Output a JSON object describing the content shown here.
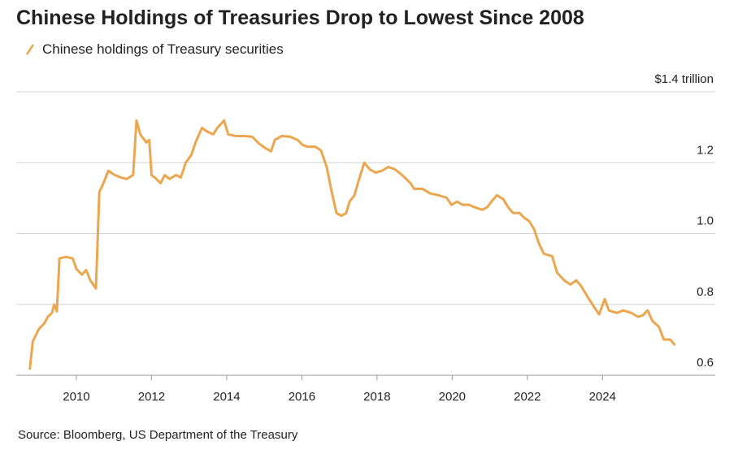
{
  "chart_data": {
    "type": "line",
    "title": "Chinese Holdings of Treasuries Drop to Lowest Since 2008",
    "source": "Source: Bloomberg, US Department of the Treasury",
    "x": [
      2008.76,
      2008.84,
      2009.0,
      2009.15,
      2009.24,
      2009.35,
      2009.41,
      2009.48,
      2009.55,
      2009.72,
      2009.9,
      2010.0,
      2010.15,
      2010.26,
      2010.37,
      2010.52,
      2010.61,
      2010.72,
      2010.85,
      2011.02,
      2011.19,
      2011.34,
      2011.51,
      2011.6,
      2011.7,
      2011.86,
      2011.94,
      2012.0,
      2012.13,
      2012.24,
      2012.35,
      2012.48,
      2012.65,
      2012.78,
      2012.91,
      2013.06,
      2013.17,
      2013.34,
      2013.49,
      2013.64,
      2013.75,
      2013.93,
      2014.04,
      2014.25,
      2014.47,
      2014.68,
      2014.86,
      2015.03,
      2015.18,
      2015.28,
      2015.46,
      2015.69,
      2015.89,
      2016.02,
      2016.15,
      2016.36,
      2016.51,
      2016.66,
      2016.79,
      2016.92,
      2017.05,
      2017.18,
      2017.27,
      2017.4,
      2017.51,
      2017.66,
      2017.81,
      2017.96,
      2018.13,
      2018.3,
      2018.48,
      2018.67,
      2018.89,
      2018.99,
      2019.21,
      2019.42,
      2019.64,
      2019.85,
      2019.98,
      2020.13,
      2020.28,
      2020.45,
      2020.6,
      2020.8,
      2020.93,
      2021.06,
      2021.19,
      2021.36,
      2021.49,
      2021.62,
      2021.79,
      2021.92,
      2022.05,
      2022.18,
      2022.31,
      2022.44,
      2022.66,
      2022.79,
      2022.98,
      2023.15,
      2023.3,
      2023.43,
      2023.6,
      2023.78,
      2023.91,
      2024.06,
      2024.17,
      2024.38,
      2024.55,
      2024.77,
      2024.94,
      2025.07,
      2025.2,
      2025.33,
      2025.5,
      2025.63,
      2025.8,
      2025.93
    ],
    "series": [
      {
        "name": "Chinese holdings of Treasury securities",
        "color": "#eba64e",
        "values": [
          0.616,
          0.696,
          0.73,
          0.747,
          0.765,
          0.776,
          0.8,
          0.78,
          0.93,
          0.934,
          0.93,
          0.9,
          0.884,
          0.897,
          0.868,
          0.845,
          1.117,
          1.142,
          1.177,
          1.165,
          1.158,
          1.154,
          1.165,
          1.319,
          1.28,
          1.257,
          1.264,
          1.165,
          1.154,
          1.142,
          1.165,
          1.154,
          1.165,
          1.158,
          1.2,
          1.222,
          1.257,
          1.298,
          1.287,
          1.28,
          1.298,
          1.319,
          1.28,
          1.275,
          1.275,
          1.273,
          1.254,
          1.241,
          1.232,
          1.264,
          1.275,
          1.273,
          1.264,
          1.25,
          1.245,
          1.245,
          1.234,
          1.188,
          1.12,
          1.058,
          1.05,
          1.058,
          1.09,
          1.108,
          1.149,
          1.2,
          1.181,
          1.172,
          1.177,
          1.188,
          1.181,
          1.165,
          1.142,
          1.126,
          1.126,
          1.113,
          1.108,
          1.101,
          1.081,
          1.09,
          1.081,
          1.081,
          1.074,
          1.067,
          1.074,
          1.092,
          1.108,
          1.097,
          1.074,
          1.058,
          1.058,
          1.044,
          1.035,
          1.012,
          0.971,
          0.943,
          0.936,
          0.89,
          0.868,
          0.856,
          0.868,
          0.852,
          0.822,
          0.792,
          0.772,
          0.815,
          0.783,
          0.776,
          0.783,
          0.776,
          0.765,
          0.769,
          0.783,
          0.753,
          0.737,
          0.701,
          0.701,
          0.685
        ]
      }
    ],
    "xlim": [
      2008.4,
      2027.0
    ],
    "xticks": [
      2010,
      2012,
      2014,
      2016,
      2018,
      2020,
      2022,
      2024
    ],
    "ylim": [
      0.6,
      1.4
    ],
    "yticks": [
      0.6,
      0.8,
      {
        "value": 1,
        "label": "1.0"
      },
      1.2,
      {
        "value": 1.4,
        "label": "$1.4 trillion"
      }
    ],
    "grid": true
  }
}
